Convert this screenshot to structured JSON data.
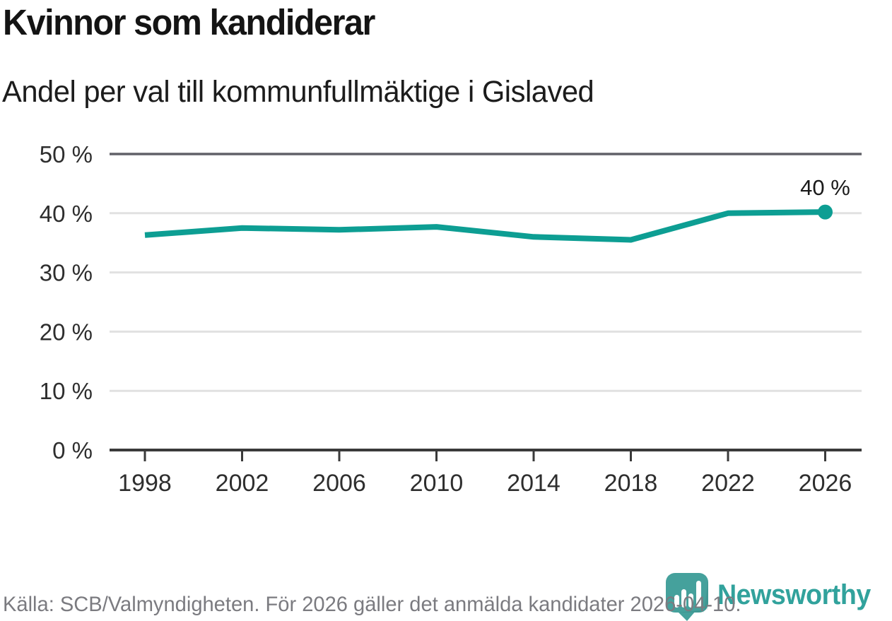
{
  "header": {
    "title": "Kvinnor som kandiderar",
    "subtitle": "Andel per val till kommunfullmäktige i Gislaved"
  },
  "chart_data": {
    "type": "line",
    "title": "Kvinnor som kandiderar",
    "subtitle": "Andel per val till kommunfullmäktige i Gislaved",
    "categories": [
      "1998",
      "2002",
      "2006",
      "2010",
      "2014",
      "2018",
      "2022",
      "2026"
    ],
    "values": [
      36.3,
      37.5,
      37.2,
      37.7,
      36.0,
      35.5,
      40.0,
      40.2
    ],
    "unit": "%",
    "ylim": [
      0,
      50
    ],
    "ytick_values": [
      0,
      10,
      20,
      30,
      40,
      50
    ],
    "ytick_labels": [
      "0 %",
      "10 %",
      "20 %",
      "30 %",
      "40 %",
      "50 %"
    ],
    "grid": true,
    "legend": "none",
    "end_point_label": "40 %",
    "line_color": "#0d9e93",
    "axis_color": "#3a3a3a",
    "gridline_color": "#e1e1e1",
    "top_gridline_color": "#616168",
    "tick_label_color": "#2e2e2e"
  },
  "footer": {
    "source": "Källa: SCB/Valmyndigheten. För 2026 gäller det anmälda kandidater 2026-04-10."
  },
  "logo": {
    "name": "Newsworthy",
    "icon": "newsworthy-pin-barchart-icon",
    "color": "#31a29c"
  }
}
